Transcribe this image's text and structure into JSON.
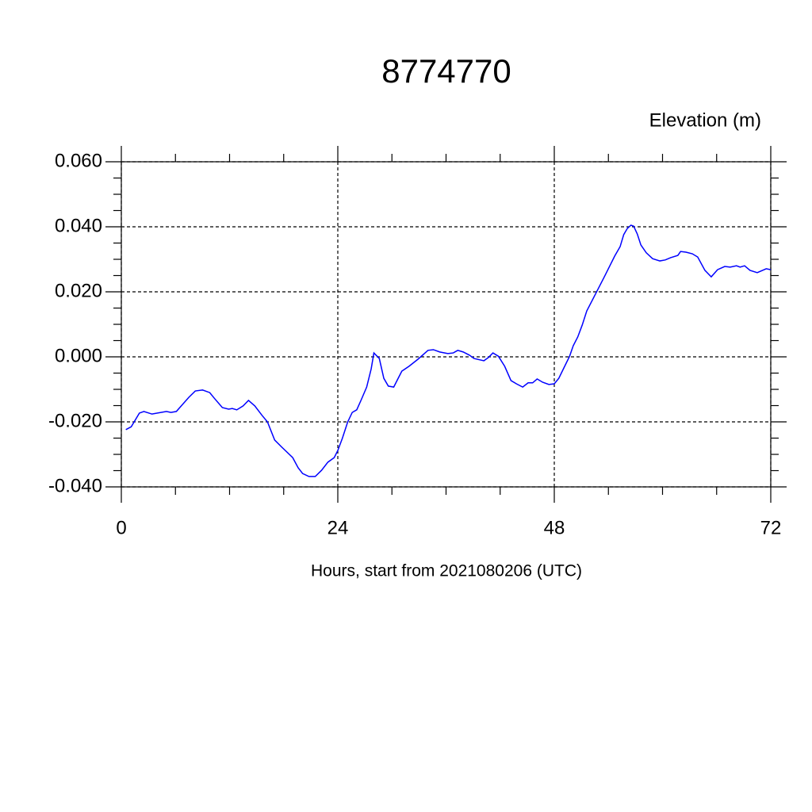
{
  "chart_data": {
    "type": "line",
    "title": "8774770",
    "y_label": "Elevation (m)",
    "x_label": "Hours, start from 2021080206 (UTC)",
    "color": "#0000ff",
    "grid": true,
    "xlim": [
      0,
      72
    ],
    "xticks": [
      0,
      24,
      48,
      72
    ],
    "xminorticks": [
      6,
      12,
      18,
      30,
      36,
      42,
      54,
      60,
      66
    ],
    "ylim": [
      -0.04,
      0.06
    ],
    "yticks": [
      {
        "value": -0.04,
        "label": "-0.040"
      },
      {
        "value": -0.02,
        "label": "-0.020"
      },
      {
        "value": 0,
        "label": "0.000"
      },
      {
        "value": 0.02,
        "label": "0.020"
      },
      {
        "value": 0.04,
        "label": "0.040"
      },
      {
        "value": 0.06,
        "label": "0.060"
      }
    ],
    "yminorticks": [
      -0.035,
      -0.03,
      -0.025,
      -0.015,
      -0.01,
      -0.005,
      0.005,
      0.01,
      0.015,
      0.025,
      0.03,
      0.035,
      0.045,
      0.05,
      0.055
    ],
    "x": [
      0.5,
      1.1,
      2.0,
      2.5,
      3.4,
      5.0,
      5.5,
      6.1,
      7.5,
      8.2,
      9.0,
      9.8,
      10.3,
      11.2,
      11.9,
      12.3,
      12.8,
      13.5,
      14.1,
      14.8,
      15.6,
      16.2,
      17.0,
      17.8,
      19.0,
      19.6,
      20.1,
      20.8,
      21.5,
      22.2,
      22.9,
      23.6,
      24.0,
      24.5,
      25.1,
      25.6,
      26.1,
      26.6,
      27.2,
      27.7,
      28.0,
      28.6,
      29.1,
      29.6,
      30.2,
      30.6,
      31.1,
      31.9,
      32.9,
      34.0,
      34.6,
      35.3,
      36.2,
      36.8,
      37.3,
      37.9,
      38.6,
      39.1,
      40.2,
      40.7,
      41.2,
      41.8,
      42.5,
      43.2,
      43.8,
      44.5,
      45.1,
      45.6,
      46.1,
      46.7,
      47.4,
      48.0,
      48.5,
      49.1,
      49.7,
      50.1,
      50.6,
      51.1,
      51.6,
      52.6,
      53.6,
      54.7,
      55.3,
      55.7,
      56.1,
      56.5,
      56.8,
      57.2,
      57.6,
      58.2,
      58.9,
      59.7,
      60.3,
      60.9,
      61.7,
      62.0,
      62.6,
      63.3,
      63.9,
      64.7,
      65.4,
      66.1,
      66.9,
      67.5,
      68.2,
      68.6,
      69.1,
      69.7,
      70.5,
      71.5,
      72.0
    ],
    "values": [
      -0.0224,
      -0.0215,
      -0.0173,
      -0.0168,
      -0.0176,
      -0.0168,
      -0.0171,
      -0.0168,
      -0.0124,
      -0.0105,
      -0.0102,
      -0.011,
      -0.0127,
      -0.0156,
      -0.0161,
      -0.0159,
      -0.0163,
      -0.0151,
      -0.0134,
      -0.0151,
      -0.018,
      -0.02,
      -0.0256,
      -0.0278,
      -0.031,
      -0.0341,
      -0.0359,
      -0.0368,
      -0.0368,
      -0.0349,
      -0.0324,
      -0.031,
      -0.0288,
      -0.0251,
      -0.02,
      -0.0171,
      -0.0163,
      -0.0132,
      -0.0093,
      -0.0037,
      0.0012,
      -0.0005,
      -0.0066,
      -0.009,
      -0.0093,
      -0.0071,
      -0.0044,
      -0.0029,
      -0.0007,
      0.002,
      0.0022,
      0.0015,
      0.001,
      0.0012,
      0.002,
      0.0015,
      0.0005,
      -0.0005,
      -0.0012,
      -0.0002,
      0.0012,
      0.0002,
      -0.0029,
      -0.0073,
      -0.0083,
      -0.0093,
      -0.008,
      -0.008,
      -0.0068,
      -0.0078,
      -0.0085,
      -0.0083,
      -0.0066,
      -0.0032,
      0.0002,
      0.0034,
      0.0061,
      0.0098,
      0.0141,
      0.0195,
      0.0249,
      0.031,
      0.0339,
      0.0376,
      0.0395,
      0.0405,
      0.0402,
      0.0378,
      0.0344,
      0.032,
      0.0302,
      0.0295,
      0.0298,
      0.0305,
      0.0312,
      0.0324,
      0.0322,
      0.0317,
      0.0307,
      0.0266,
      0.0246,
      0.0268,
      0.0278,
      0.0276,
      0.028,
      0.0276,
      0.028,
      0.0266,
      0.0259,
      0.0271,
      0.0268
    ]
  }
}
